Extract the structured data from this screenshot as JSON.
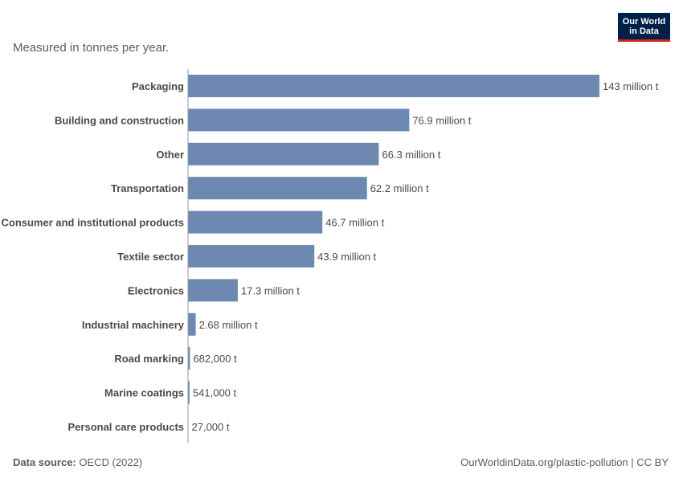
{
  "subtitle": "Measured in tonnes per year.",
  "logo": {
    "line1": "Our World",
    "line2": "in Data"
  },
  "footer": {
    "source_label": "Data source:",
    "source_value": "OECD (2022)",
    "credit": "OurWorldinData.org/plastic-pollution | CC BY"
  },
  "colors": {
    "bar": "#6e89b1",
    "axis": "#9a9a9a",
    "label": "#4a4a4a"
  },
  "chart_data": {
    "type": "bar",
    "orientation": "horizontal",
    "title": "",
    "xlabel": "",
    "ylabel": "",
    "grid": false,
    "unit": "tonnes",
    "categories": [
      "Packaging",
      "Building and construction",
      "Other",
      "Transportation",
      "Consumer and institutional products",
      "Textile sector",
      "Electronics",
      "Industrial machinery",
      "Road marking",
      "Marine coatings",
      "Personal care products"
    ],
    "values": [
      143000000,
      76900000,
      66300000,
      62200000,
      46700000,
      43900000,
      17300000,
      2680000,
      682000,
      541000,
      27000
    ],
    "value_labels": [
      "143 million t",
      "76.9 million t",
      "66.3 million t",
      "62.2 million t",
      "46.7 million t",
      "43.9 million t",
      "17.3 million t",
      "2.68 million t",
      "682,000 t",
      "541,000 t",
      "27,000 t"
    ],
    "xlim": [
      0,
      143000000
    ]
  }
}
